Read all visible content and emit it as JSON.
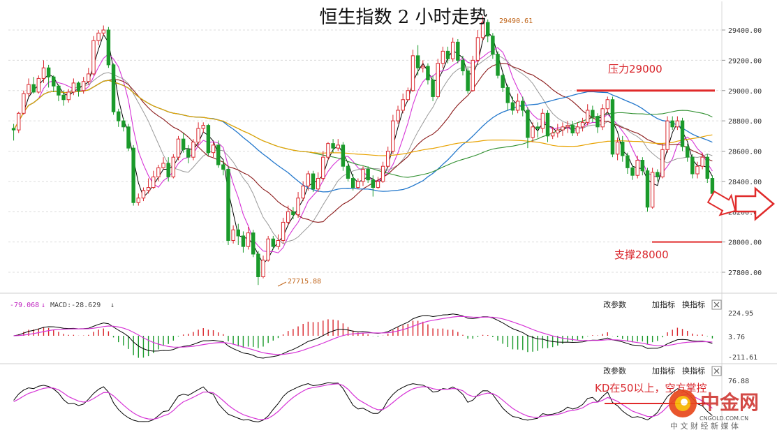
{
  "title": "恒生指数 2 小时走势",
  "chart_data": {
    "type": "candlestick",
    "main_axis": {
      "ticks": [
        29400,
        29200,
        29000,
        28800,
        28600,
        28400,
        28200,
        28000,
        27800
      ],
      "ylim": [
        27700,
        29530
      ]
    },
    "high_label": "29490.61",
    "low_label": "27715.88",
    "candles": [
      [
        28750,
        28740,
        28780,
        28670
      ],
      [
        28740,
        28850,
        28860,
        28720
      ],
      [
        28850,
        28980,
        29000,
        28840
      ],
      [
        28980,
        29040,
        29080,
        28960
      ],
      [
        29040,
        28990,
        29090,
        28980
      ],
      [
        28990,
        29080,
        29100,
        28980
      ],
      [
        29080,
        29150,
        29200,
        29050
      ],
      [
        29150,
        29090,
        29170,
        29020
      ],
      [
        29090,
        29030,
        29100,
        28990
      ],
      [
        29030,
        28970,
        29040,
        28930
      ],
      [
        28970,
        28940,
        29000,
        28900
      ],
      [
        28940,
        28990,
        29010,
        28920
      ],
      [
        28990,
        29050,
        29080,
        28970
      ],
      [
        29050,
        29000,
        29060,
        28960
      ],
      [
        29000,
        29060,
        29090,
        28980
      ],
      [
        29060,
        29110,
        29150,
        29040
      ],
      [
        29110,
        29330,
        29360,
        29100
      ],
      [
        29330,
        29380,
        29400,
        29300
      ],
      [
        29380,
        29400,
        29430,
        29360
      ],
      [
        29400,
        29170,
        29420,
        29150
      ],
      [
        29170,
        28860,
        29180,
        28840
      ],
      [
        28860,
        28800,
        28880,
        28760
      ],
      [
        28800,
        28760,
        28820,
        28730
      ],
      [
        28760,
        28620,
        28780,
        28600
      ],
      [
        28620,
        28260,
        28640,
        28240
      ],
      [
        28260,
        28290,
        28320,
        28240
      ],
      [
        28290,
        28340,
        28360,
        28270
      ],
      [
        28340,
        28360,
        28420,
        28320
      ],
      [
        28360,
        28430,
        28470,
        28350
      ],
      [
        28430,
        28490,
        28510,
        28400
      ],
      [
        28490,
        28520,
        28560,
        28480
      ],
      [
        28520,
        28430,
        28560,
        28400
      ],
      [
        28430,
        28560,
        28580,
        28420
      ],
      [
        28560,
        28680,
        28700,
        28540
      ],
      [
        28680,
        28610,
        28720,
        28590
      ],
      [
        28610,
        28560,
        28640,
        28520
      ],
      [
        28560,
        28660,
        28680,
        28540
      ],
      [
        28660,
        28750,
        28790,
        28640
      ],
      [
        28750,
        28770,
        28790,
        28720
      ],
      [
        28770,
        28590,
        28780,
        28570
      ],
      [
        28590,
        28640,
        28660,
        28560
      ],
      [
        28640,
        28510,
        28670,
        28490
      ],
      [
        28510,
        28480,
        28540,
        28440
      ],
      [
        28480,
        28010,
        28500,
        27980
      ],
      [
        28010,
        28080,
        28110,
        27990
      ],
      [
        28080,
        28040,
        28120,
        27980
      ],
      [
        28040,
        27970,
        28070,
        27930
      ],
      [
        27970,
        28060,
        28100,
        27950
      ],
      [
        28060,
        27920,
        28080,
        27900
      ],
      [
        27920,
        27770,
        27940,
        27716
      ],
      [
        27770,
        27880,
        27910,
        27760
      ],
      [
        27880,
        28020,
        28040,
        27870
      ],
      [
        28020,
        27970,
        28040,
        27950
      ],
      [
        27970,
        28010,
        28050,
        27950
      ],
      [
        28010,
        28130,
        28160,
        27990
      ],
      [
        28130,
        28200,
        28240,
        28110
      ],
      [
        28200,
        28180,
        28230,
        28150
      ],
      [
        28180,
        28290,
        28330,
        28160
      ],
      [
        28290,
        28370,
        28400,
        28270
      ],
      [
        28370,
        28450,
        28470,
        28340
      ],
      [
        28450,
        28350,
        28470,
        28330
      ],
      [
        28350,
        28420,
        28460,
        28330
      ],
      [
        28420,
        28560,
        28600,
        28400
      ],
      [
        28560,
        28650,
        28660,
        28540
      ],
      [
        28650,
        28620,
        28680,
        28590
      ],
      [
        28620,
        28640,
        28680,
        28600
      ],
      [
        28640,
        28500,
        28660,
        28470
      ],
      [
        28500,
        28420,
        28530,
        28400
      ],
      [
        28420,
        28360,
        28450,
        28340
      ],
      [
        28360,
        28400,
        28420,
        28350
      ],
      [
        28400,
        28480,
        28500,
        28370
      ],
      [
        28480,
        28410,
        28500,
        28390
      ],
      [
        28410,
        28360,
        28440,
        28300
      ],
      [
        28360,
        28400,
        28430,
        28350
      ],
      [
        28400,
        28500,
        28530,
        28390
      ],
      [
        28500,
        28600,
        28630,
        28490
      ],
      [
        28600,
        28800,
        28840,
        28580
      ],
      [
        28800,
        28870,
        28900,
        28780
      ],
      [
        28870,
        28940,
        28980,
        28850
      ],
      [
        28940,
        29000,
        29020,
        28930
      ],
      [
        29000,
        29230,
        29270,
        28990
      ],
      [
        29230,
        29150,
        29300,
        29100
      ],
      [
        29150,
        29160,
        29200,
        29120
      ],
      [
        29160,
        29070,
        29180,
        29040
      ],
      [
        29070,
        28960,
        29100,
        28930
      ],
      [
        28960,
        29180,
        29210,
        28950
      ],
      [
        29180,
        29260,
        29290,
        29150
      ],
      [
        29260,
        29210,
        29290,
        29180
      ],
      [
        29210,
        29320,
        29350,
        29190
      ],
      [
        29320,
        29200,
        29340,
        29180
      ],
      [
        29200,
        29130,
        29230,
        29100
      ],
      [
        29130,
        29000,
        29150,
        28980
      ],
      [
        29000,
        29200,
        29230,
        28990
      ],
      [
        29200,
        29350,
        29400,
        29180
      ],
      [
        29350,
        29450,
        29490,
        29330
      ],
      [
        29450,
        29360,
        29470,
        29320
      ],
      [
        29360,
        29240,
        29380,
        29210
      ],
      [
        29240,
        29100,
        29260,
        29080
      ],
      [
        29100,
        29020,
        29120,
        28990
      ],
      [
        29020,
        28920,
        29040,
        28870
      ],
      [
        28920,
        28870,
        28960,
        28840
      ],
      [
        28870,
        28930,
        28980,
        28850
      ],
      [
        28930,
        28870,
        28960,
        28830
      ],
      [
        28870,
        28690,
        28890,
        28620
      ],
      [
        28690,
        28760,
        28790,
        28660
      ],
      [
        28760,
        28750,
        28790,
        28690
      ],
      [
        28750,
        28850,
        28880,
        28720
      ],
      [
        28850,
        28700,
        28870,
        28660
      ],
      [
        28700,
        28720,
        28760,
        28680
      ],
      [
        28720,
        28740,
        28780,
        28690
      ],
      [
        28740,
        28760,
        28790,
        28700
      ],
      [
        28760,
        28770,
        28800,
        28720
      ],
      [
        28770,
        28720,
        28800,
        28700
      ],
      [
        28720,
        28760,
        28790,
        28700
      ],
      [
        28760,
        28790,
        28820,
        28730
      ],
      [
        28790,
        28870,
        28910,
        28770
      ],
      [
        28870,
        28830,
        28900,
        28790
      ],
      [
        28830,
        28760,
        28850,
        28720
      ],
      [
        28760,
        28880,
        28910,
        28740
      ],
      [
        28880,
        28940,
        28960,
        28850
      ],
      [
        28940,
        28580,
        28960,
        28560
      ],
      [
        28580,
        28660,
        28690,
        28540
      ],
      [
        28660,
        28570,
        28700,
        28530
      ],
      [
        28570,
        28490,
        28590,
        28450
      ],
      [
        28490,
        28440,
        28510,
        28410
      ],
      [
        28440,
        28540,
        28570,
        28420
      ],
      [
        28540,
        28470,
        28560,
        28440
      ],
      [
        28470,
        28230,
        28490,
        28200
      ],
      [
        28230,
        28460,
        28490,
        28220
      ],
      [
        28460,
        28430,
        28480,
        28400
      ],
      [
        28430,
        28610,
        28650,
        28420
      ],
      [
        28610,
        28800,
        28830,
        28590
      ],
      [
        28800,
        28760,
        28830,
        28740
      ],
      [
        28760,
        28800,
        28830,
        28740
      ],
      [
        28800,
        28630,
        28820,
        28600
      ],
      [
        28630,
        28560,
        28650,
        28530
      ],
      [
        28560,
        28450,
        28580,
        28420
      ],
      [
        28450,
        28500,
        28530,
        28420
      ],
      [
        28500,
        28560,
        28590,
        28480
      ],
      [
        28560,
        28420,
        28580,
        28390
      ],
      [
        28420,
        28320,
        28440,
        28300
      ]
    ],
    "macd": {
      "label": "-79.068",
      "macd_label": "MACD:-28.629",
      "ticks": [
        "224.95",
        "3.76",
        "-211.61"
      ]
    },
    "kd": {
      "tick": "76.88"
    },
    "annotations": {
      "resistance": "压力29000",
      "resistance_level": 29000,
      "support": "支撑28000",
      "support_level": 28000,
      "kd_note": "KD在50以上，空方掌控"
    },
    "colors": {
      "up": "#d9262c",
      "down": "#1a9a2b",
      "ma_black": "#000000",
      "ma_magenta": "#d633d6",
      "ma_gray": "#999999",
      "ma_darkred": "#8b1a1a",
      "ma_blue": "#2277cc",
      "ma_green": "#2f8f2f",
      "ma_orange": "#e8a200"
    }
  },
  "buttons": {
    "change_params": "改参数",
    "add_indicator": "加指标",
    "switch_indicator": "换指标"
  },
  "watermark": {
    "brand": "中金网",
    "domain": "CNGOLD.COM.CN",
    "slogan": "中 文 财 经 新 媒 体"
  }
}
